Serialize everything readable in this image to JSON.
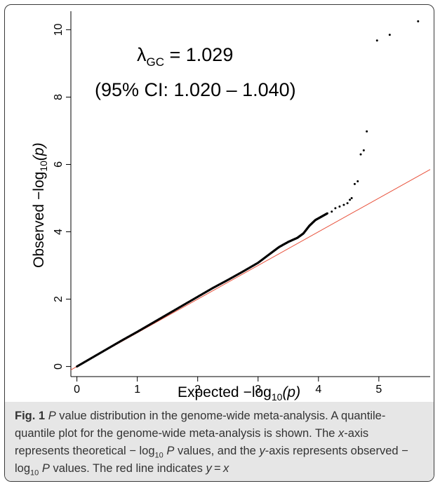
{
  "chart_data": {
    "type": "scatter",
    "xlabel": "Expected",
    "ylabel": "Observed",
    "log_label_prefix": "−log",
    "log_label_subscript": "10",
    "log_label_arg": "(p)",
    "xlim": [
      -0.1,
      5.85
    ],
    "ylim": [
      -0.3,
      10.55
    ],
    "xticks": [
      0,
      1,
      2,
      3,
      4,
      5
    ],
    "yticks": [
      0,
      2,
      4,
      6,
      8,
      10
    ],
    "lambda_symbol": "λ",
    "lambda_subscript": "GC",
    "lambda_value": " = 1.029",
    "ci_text": "(95% CI: 1.020 – 1.040)",
    "reference_line": {
      "label": "y = x",
      "color": "#e8503a",
      "from": [
        -0.1,
        -0.1
      ],
      "to": [
        5.85,
        5.85
      ]
    },
    "point_color": "#000000",
    "curve_points": [
      [
        0.0,
        0.0
      ],
      [
        0.25,
        0.26
      ],
      [
        0.5,
        0.52
      ],
      [
        0.75,
        0.78
      ],
      [
        1.0,
        1.03
      ],
      [
        1.25,
        1.29
      ],
      [
        1.5,
        1.55
      ],
      [
        1.75,
        1.81
      ],
      [
        2.0,
        2.07
      ],
      [
        2.25,
        2.33
      ],
      [
        2.5,
        2.57
      ],
      [
        2.75,
        2.82
      ],
      [
        3.0,
        3.08
      ],
      [
        3.2,
        3.35
      ],
      [
        3.35,
        3.55
      ],
      [
        3.5,
        3.7
      ],
      [
        3.65,
        3.82
      ],
      [
        3.75,
        3.95
      ],
      [
        3.85,
        4.18
      ],
      [
        3.95,
        4.35
      ],
      [
        4.05,
        4.45
      ],
      [
        4.15,
        4.55
      ]
    ],
    "tail_points": [
      [
        4.22,
        4.6
      ],
      [
        4.28,
        4.7
      ],
      [
        4.35,
        4.75
      ],
      [
        4.42,
        4.8
      ],
      [
        4.48,
        4.85
      ],
      [
        4.52,
        4.95
      ],
      [
        4.55,
        5.0
      ],
      [
        4.6,
        5.42
      ],
      [
        4.65,
        5.5
      ],
      [
        4.7,
        6.3
      ],
      [
        4.75,
        6.42
      ],
      [
        4.8,
        6.98
      ],
      [
        4.97,
        9.68
      ],
      [
        5.18,
        9.85
      ],
      [
        5.65,
        10.25
      ]
    ]
  },
  "caption": {
    "label": "Fig. 1",
    "p_letter": "P",
    "title_rest": " value distribution in the genome-wide meta-analysis.",
    "body_1": "A quantile-quantile plot for the genome-wide meta-analysis is shown. The ",
    "x_letter": "x",
    "body_2": "-axis represents theoretical − log",
    "sub_10_a": "10",
    "p_letter_2": "P",
    "body_3": " values, and the ",
    "y_letter": "y",
    "body_4": "-axis represents observed − log",
    "sub_10_b": "10",
    "p_letter_3": "P",
    "body_5": " values. The red line indicates ",
    "eq_y": "y",
    "eq_mid": " = ",
    "eq_x": "x"
  }
}
